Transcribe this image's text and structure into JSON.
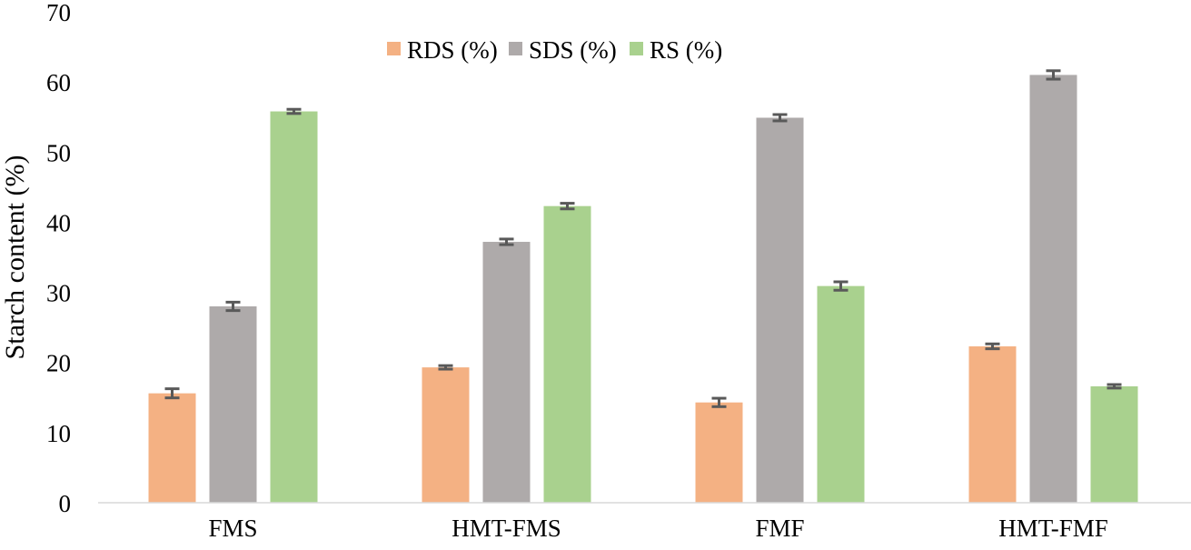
{
  "chart_data": {
    "type": "bar",
    "title": "",
    "xlabel": "",
    "ylabel": "Starch content (%)",
    "ylim": [
      0,
      70
    ],
    "yticks": [
      "0",
      "10",
      "20",
      "30",
      "40",
      "50",
      "60",
      "70"
    ],
    "grid": false,
    "legend_position": "top",
    "categories": [
      "FMS",
      "HMT-FMS",
      "FMF",
      "HMT-FMF"
    ],
    "series": [
      {
        "name": "RDS (%)",
        "color": "#f4b183",
        "values": [
          15.6,
          19.3,
          14.3,
          22.3
        ],
        "errors": [
          0.65,
          0.25,
          0.6,
          0.35
        ]
      },
      {
        "name": "SDS (%)",
        "color": "#aeaaaa",
        "values": [
          28.0,
          37.2,
          54.9,
          61.0
        ],
        "errors": [
          0.6,
          0.4,
          0.45,
          0.6
        ]
      },
      {
        "name": "RS (%)",
        "color": "#a9d18e",
        "values": [
          55.8,
          42.3,
          30.9,
          16.6
        ],
        "errors": [
          0.3,
          0.4,
          0.6,
          0.25
        ]
      }
    ],
    "error_bar_color": "#595959"
  }
}
